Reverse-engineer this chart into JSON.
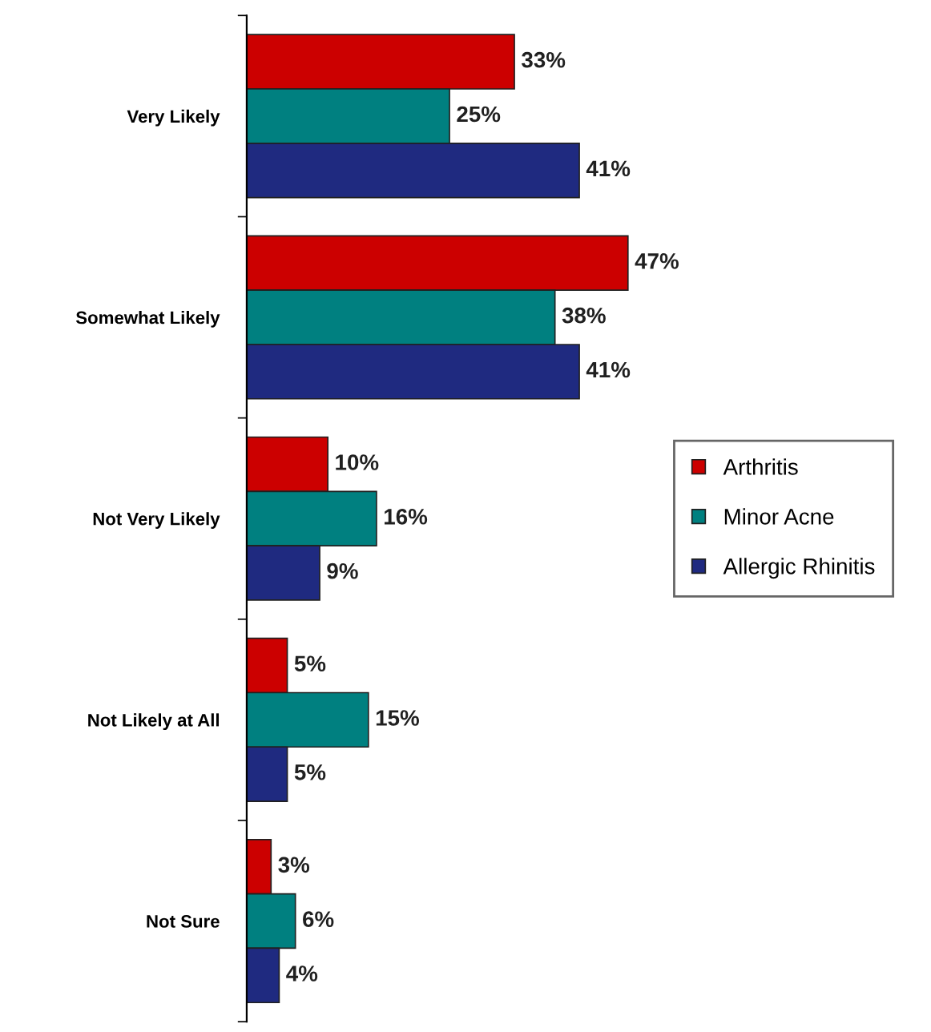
{
  "chart_data": {
    "type": "bar",
    "orientation": "horizontal",
    "categories": [
      "Very Likely",
      "Somewhat Likely",
      "Not Very Likely",
      "Not Likely at All",
      "Not Sure"
    ],
    "series": [
      {
        "name": "Arthritis",
        "color": "#cc0000",
        "values": [
          33,
          47,
          10,
          5,
          3
        ],
        "value_labels": [
          "33%",
          "47%",
          "10%",
          "5%",
          "3%"
        ]
      },
      {
        "name": "Minor Acne",
        "color": "#008080",
        "values": [
          25,
          38,
          16,
          15,
          6
        ],
        "value_labels": [
          "25%",
          "38%",
          "16%",
          "15%",
          "6%"
        ]
      },
      {
        "name": "Allergic Rhinitis",
        "color": "#1f2a80",
        "values": [
          41,
          41,
          9,
          5,
          4
        ],
        "value_labels": [
          "41%",
          "41%",
          "9%",
          "5%",
          "4%"
        ]
      }
    ],
    "tick_labels": "y",
    "grid": false,
    "legend": "right"
  }
}
